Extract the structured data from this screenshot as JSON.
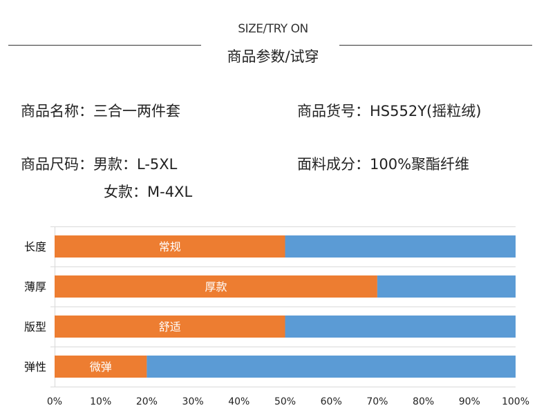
{
  "header": {
    "title_en": "SIZE/TRY ON",
    "title_cn": "商品参数/试穿"
  },
  "info": {
    "name_label": "商品名称：",
    "name_value": "三合一两件套",
    "sku_label": "商品货号：",
    "sku_value": "HS552Y(摇粒绒)",
    "size_label": "商品尺码：",
    "size_men": "男款：L-5XL",
    "size_women": "女款：M-4XL",
    "fabric_label": "面料成分：",
    "fabric_value": "100%聚酯纤维"
  },
  "chart_data": {
    "type": "bar",
    "orientation": "horizontal-stacked",
    "categories": [
      "长度",
      "薄厚",
      "版型",
      "弹性"
    ],
    "series": [
      {
        "name": "rating",
        "values": [
          50,
          70,
          50,
          20
        ],
        "labels": [
          "常规",
          "厚款",
          "舒适",
          "微弹"
        ],
        "color": "#ED7D31"
      },
      {
        "name": "remainder",
        "values": [
          50,
          30,
          50,
          80
        ],
        "color": "#5B9BD5"
      }
    ],
    "xlim": [
      0,
      100
    ],
    "xticks": [
      "0%",
      "10%",
      "20%",
      "30%",
      "40%",
      "50%",
      "60%",
      "70%",
      "80%",
      "90%",
      "100%"
    ],
    "grid": true
  }
}
